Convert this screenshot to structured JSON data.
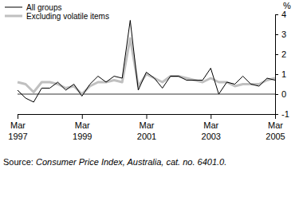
{
  "chart_data": {
    "type": "line",
    "y_label": "%",
    "source": "Source: Consumer Price Index, Australia, cat. no. 6401.0.",
    "categories": [
      "Mar 1997",
      null,
      null,
      null,
      null,
      null,
      null,
      null,
      "Mar 1999",
      null,
      null,
      null,
      null,
      null,
      null,
      null,
      "Mar 2001",
      null,
      null,
      null,
      null,
      null,
      null,
      null,
      "Mar 2003",
      null,
      null,
      null,
      null,
      null,
      null,
      null,
      "Mar 2005"
    ],
    "series": [
      {
        "name": "All groups",
        "color": "#000000",
        "values": [
          0.2,
          -0.2,
          -0.4,
          0.3,
          0.3,
          0.6,
          0.2,
          0.5,
          -0.1,
          0.5,
          0.9,
          0.6,
          0.9,
          0.8,
          3.7,
          0.2,
          1.1,
          0.8,
          0.3,
          0.9,
          0.9,
          0.7,
          0.7,
          0.7,
          1.3,
          0.0,
          0.6,
          0.5,
          0.9,
          0.5,
          0.4,
          0.8,
          0.7
        ]
      },
      {
        "name": "Excluding volatile items",
        "color": "#c0c0c0",
        "values": [
          0.6,
          0.5,
          0.1,
          0.6,
          0.6,
          0.5,
          0.3,
          0.4,
          0.0,
          0.4,
          0.6,
          0.6,
          0.7,
          0.6,
          2.8,
          0.4,
          1.0,
          0.8,
          0.6,
          0.9,
          0.9,
          0.8,
          0.7,
          0.6,
          0.8,
          0.6,
          0.6,
          0.4,
          0.5,
          0.5,
          0.5,
          0.7,
          0.8
        ]
      }
    ],
    "ylim": [
      -1,
      4
    ],
    "yticks": [
      -1,
      0,
      1,
      2,
      3,
      4
    ],
    "grid": false,
    "legend": "top-left"
  }
}
